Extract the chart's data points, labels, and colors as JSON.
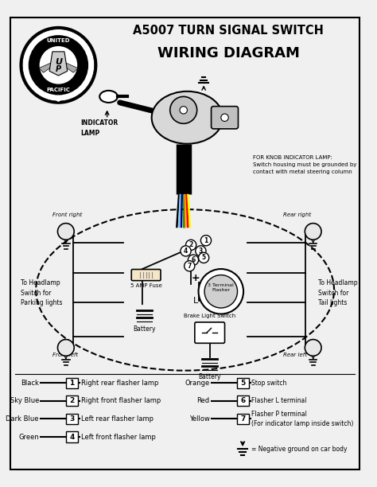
{
  "title1": "A5007 TURN SIGNAL SWITCH",
  "title2": "WIRING DIAGRAM",
  "bg_color": "#f0f0f0",
  "legend_left_names": [
    "Black",
    "Sky Blue",
    "Dark Blue",
    "Green"
  ],
  "legend_left_nums": [
    "1",
    "2",
    "3",
    "4"
  ],
  "legend_left_labels": [
    "Right rear flasher lamp",
    "Right front flasher lamp",
    "Left rear flasher lamp",
    "Left front flasher lamp"
  ],
  "legend_right_names": [
    "Orange",
    "Red",
    "Yellow"
  ],
  "legend_right_nums": [
    "5",
    "6",
    "7"
  ],
  "legend_right_labels": [
    "Stop switch",
    "Flasher L terminal",
    "Flasher P terminal\n(For indicator lamp inside switch)"
  ],
  "ground_label": "= Negative ground on car body",
  "knob_note": "FOR KNOB INDICATOR LAMP:\nSwitch housing must be grounded by\ncontact with metal steering column",
  "indicator_label": "INDICATOR\nLAMP",
  "front_right_label": "Front right",
  "front_left_label": "Front left",
  "rear_right_label": "Rear right",
  "rear_left_label": "Rear left",
  "headlamp_parking_label": "To Headlamp\nSwitch for\nParking lights",
  "headlamp_tail_label": "To Headlamp\nSwitch for\nTail lights",
  "battery_label1": "Battery",
  "battery_label2": "Battery",
  "fuse_label": "5 AMP Fuse",
  "flasher_label": "3 Terminal\nFlasher",
  "brake_label": "Brake Light Switch",
  "plus_label": "+",
  "l_label": "L"
}
